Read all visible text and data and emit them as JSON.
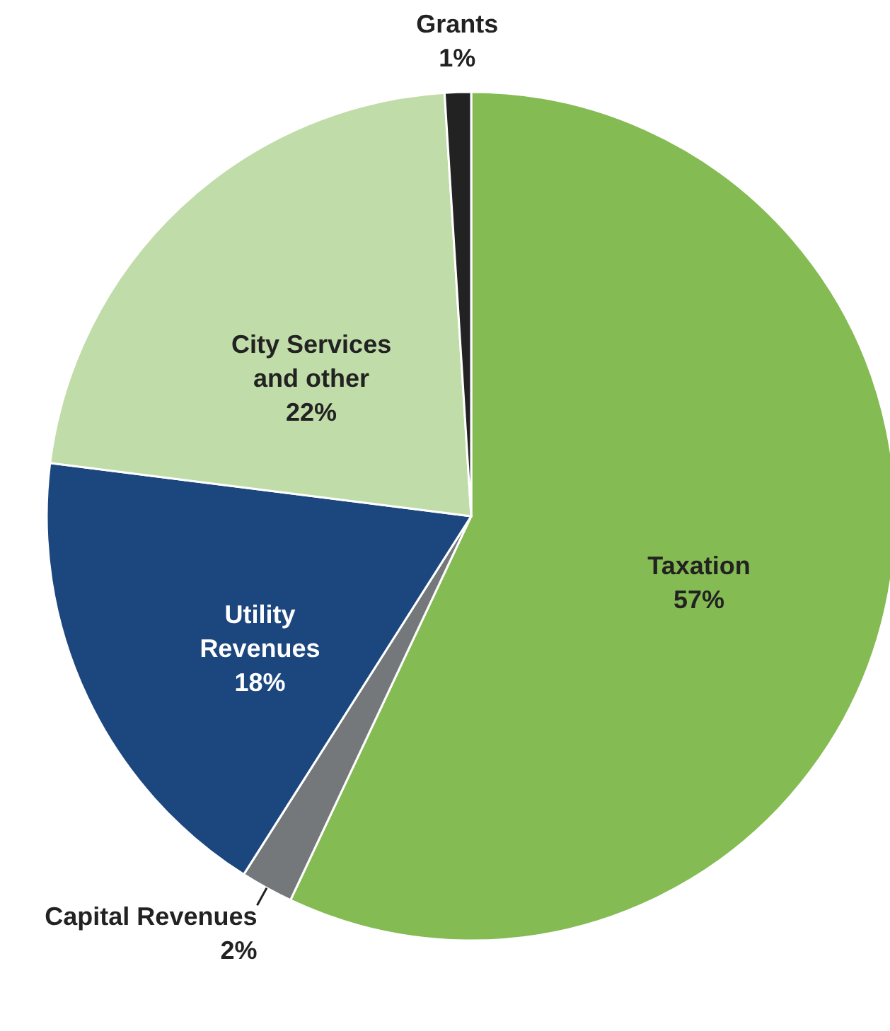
{
  "chart_data": {
    "type": "pie",
    "categories": [
      "Taxation",
      "Capital Revenues",
      "Utility Revenues",
      "City Services and other",
      "Grants"
    ],
    "values": [
      57,
      2,
      18,
      22,
      1
    ],
    "colors": [
      "#84bb52",
      "#75787b",
      "#1c477e",
      "#c0dca8",
      "#222222"
    ],
    "value_labels": [
      "57%",
      "2%",
      "18%",
      "22%",
      "1%"
    ]
  }
}
